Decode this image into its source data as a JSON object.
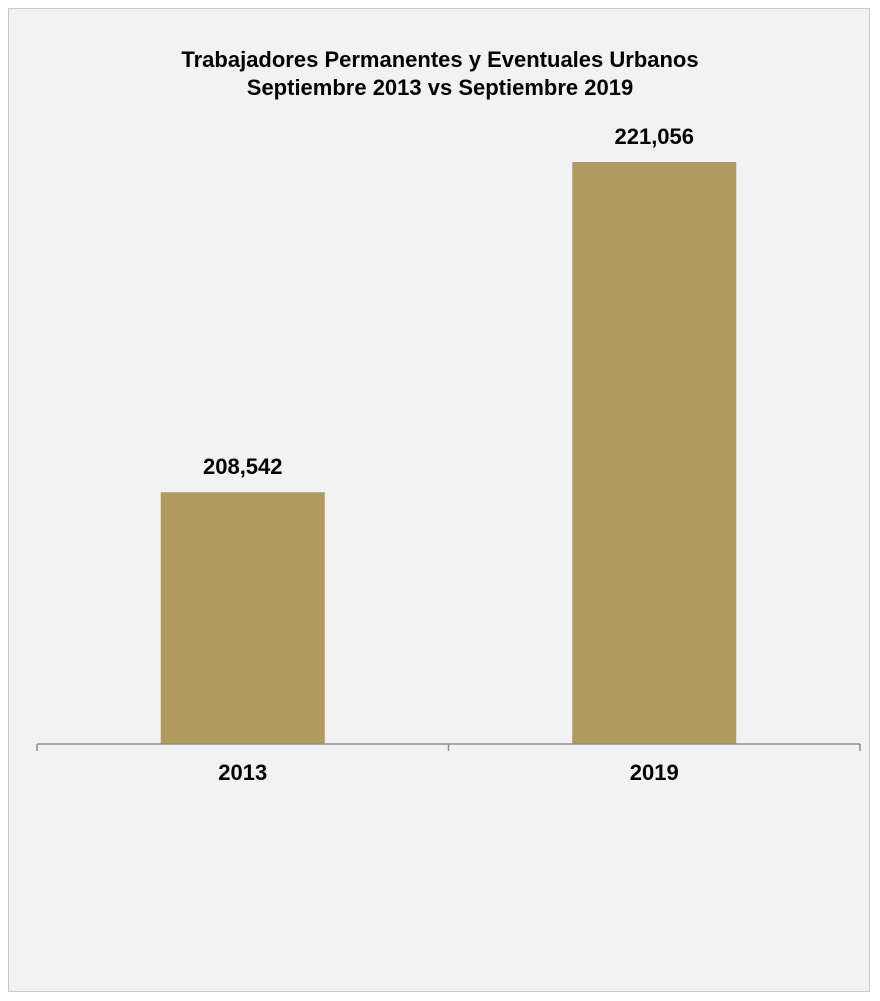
{
  "chart_data": {
    "type": "bar",
    "title": "Trabajadores Permanentes y Eventuales Urbanos",
    "subtitle": "Septiembre 2013 vs Septiembre 2019",
    "categories": [
      "2013",
      "2019"
    ],
    "values": [
      208542,
      221056
    ],
    "value_labels": [
      "208,542",
      "221,056"
    ],
    "xlabel": "",
    "ylabel": "",
    "ylim": [
      199000,
      222500
    ],
    "grid": false,
    "legend": "none",
    "bar_color": "#b09a5e",
    "background_color": "#f2f2f2"
  }
}
